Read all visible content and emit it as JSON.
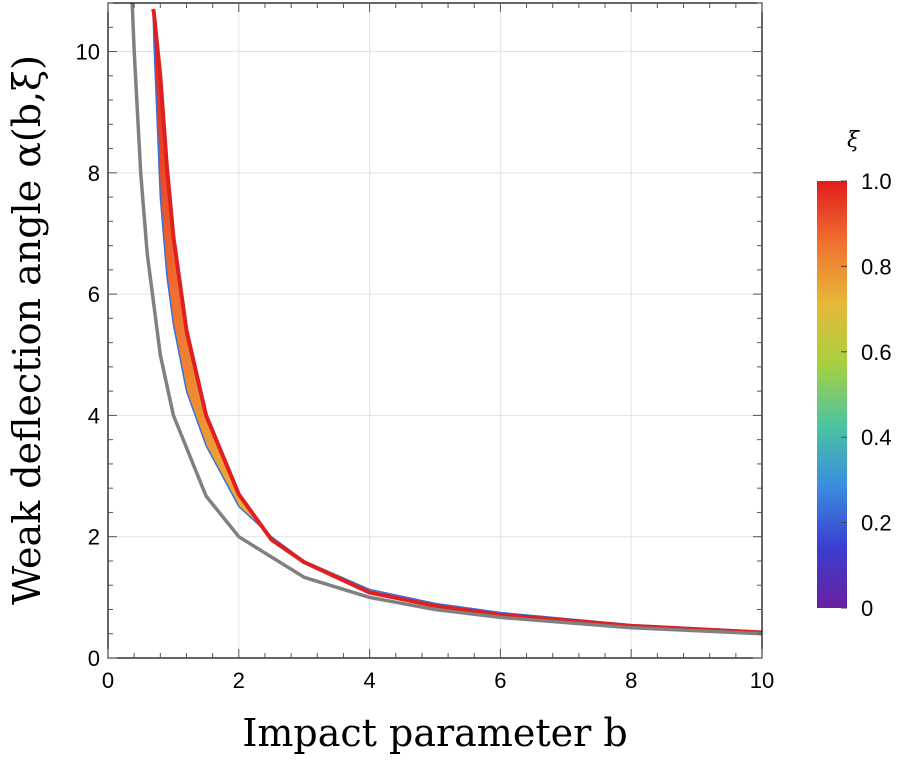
{
  "chart_data": {
    "type": "line",
    "xlabel": "Impact parameter b",
    "ylabel": "Weak deflection angle α(b,ξ)",
    "xlim": [
      0,
      10
    ],
    "ylim": [
      0,
      10.8
    ],
    "xticks": [
      "0",
      "2",
      "4",
      "6",
      "8",
      "10"
    ],
    "yticks": [
      "0",
      "2",
      "4",
      "6",
      "8",
      "10"
    ],
    "grid": true,
    "series": [
      {
        "kind": "reference-curve",
        "color": "#808080",
        "x": [
          0.37,
          0.4,
          0.5,
          0.6,
          0.8,
          1.0,
          1.5,
          2.0,
          3.0,
          4.0,
          5.0,
          6.0,
          8.0,
          10.0
        ],
        "y": [
          10.8,
          10.0,
          8.0,
          6.67,
          5.0,
          4.0,
          2.67,
          2.0,
          1.33,
          1.0,
          0.8,
          0.67,
          0.5,
          0.4
        ]
      },
      {
        "kind": "xi-band-lower",
        "xi": 0,
        "color": "#3b6fd8",
        "x": [
          0.69,
          0.7,
          0.8,
          0.9,
          1.0,
          1.2,
          1.5,
          2.0,
          2.5,
          3.0,
          4.0,
          5.0,
          6.0,
          8.0,
          10.0
        ],
        "y": [
          10.7,
          10.2,
          7.6,
          6.3,
          5.5,
          4.4,
          3.5,
          2.5,
          2.0,
          1.6,
          1.13,
          0.9,
          0.75,
          0.55,
          0.44
        ]
      },
      {
        "kind": "xi-band-upper",
        "xi": 1,
        "color": "#e02020",
        "x": [
          0.69,
          0.7,
          0.8,
          0.9,
          1.0,
          1.2,
          1.5,
          2.0,
          2.5,
          3.0,
          4.0,
          5.0,
          6.0,
          8.0,
          10.0
        ],
        "y": [
          10.7,
          10.65,
          9.6,
          8.1,
          6.95,
          5.4,
          4.0,
          2.7,
          1.95,
          1.58,
          1.08,
          0.86,
          0.71,
          0.53,
          0.42
        ]
      }
    ],
    "colorbar": {
      "title": "ξ",
      "min": 0,
      "max": 1,
      "ticks": [
        "0",
        "0.2",
        "0.4",
        "0.6",
        "0.8",
        "1.0"
      ],
      "colors": [
        "#6a1fa0",
        "#3a3fd0",
        "#3a8ee0",
        "#4cc4a0",
        "#a6d040",
        "#e8b838",
        "#f07030",
        "#e01c1c"
      ]
    }
  }
}
